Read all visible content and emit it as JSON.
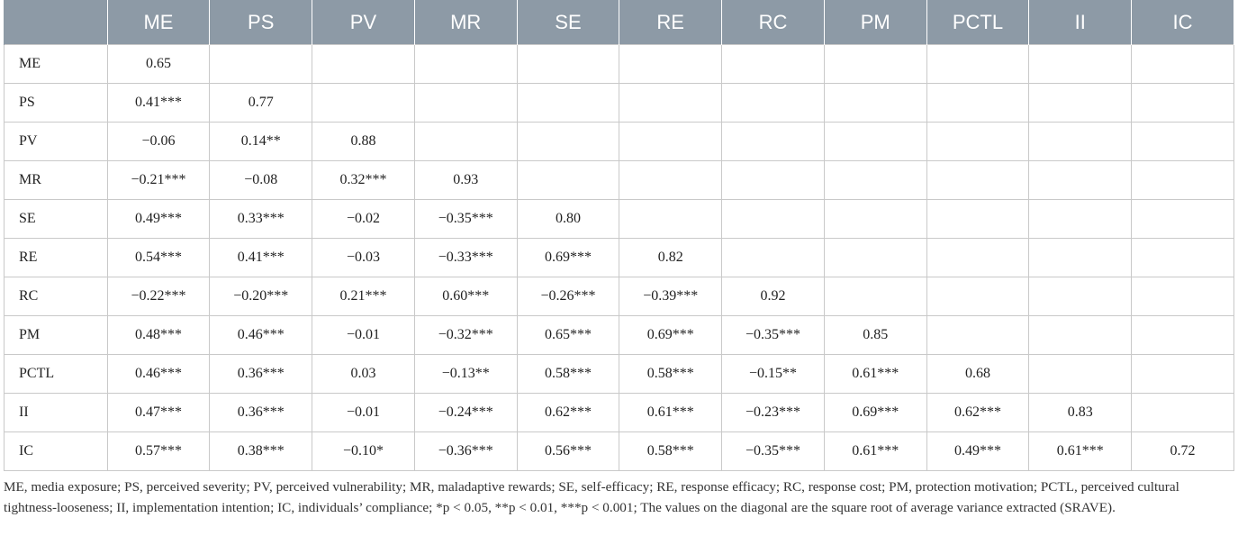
{
  "table": {
    "headers": [
      "",
      "ME",
      "PS",
      "PV",
      "MR",
      "SE",
      "RE",
      "RC",
      "PM",
      "PCTL",
      "II",
      "IC"
    ],
    "rows": [
      {
        "label": "ME",
        "cells": [
          "0.65",
          "",
          "",
          "",
          "",
          "",
          "",
          "",
          "",
          "",
          ""
        ]
      },
      {
        "label": "PS",
        "cells": [
          "0.41***",
          "0.77",
          "",
          "",
          "",
          "",
          "",
          "",
          "",
          "",
          ""
        ]
      },
      {
        "label": "PV",
        "cells": [
          "−0.06",
          "0.14**",
          "0.88",
          "",
          "",
          "",
          "",
          "",
          "",
          "",
          ""
        ]
      },
      {
        "label": "MR",
        "cells": [
          "−0.21***",
          "−0.08",
          "0.32***",
          "0.93",
          "",
          "",
          "",
          "",
          "",
          "",
          ""
        ]
      },
      {
        "label": "SE",
        "cells": [
          "0.49***",
          "0.33***",
          "−0.02",
          "−0.35***",
          "0.80",
          "",
          "",
          "",
          "",
          "",
          ""
        ]
      },
      {
        "label": "RE",
        "cells": [
          "0.54***",
          "0.41***",
          "−0.03",
          "−0.33***",
          "0.69***",
          "0.82",
          "",
          "",
          "",
          "",
          ""
        ]
      },
      {
        "label": "RC",
        "cells": [
          "−0.22***",
          "−0.20***",
          "0.21***",
          "0.60***",
          "−0.26***",
          "−0.39***",
          "0.92",
          "",
          "",
          "",
          ""
        ]
      },
      {
        "label": "PM",
        "cells": [
          "0.48***",
          "0.46***",
          "−0.01",
          "−0.32***",
          "0.65***",
          "0.69***",
          "−0.35***",
          "0.85",
          "",
          "",
          ""
        ]
      },
      {
        "label": "PCTL",
        "cells": [
          "0.46***",
          "0.36***",
          "0.03",
          "−0.13**",
          "0.58***",
          "0.58***",
          "−0.15**",
          "0.61***",
          "0.68",
          "",
          ""
        ]
      },
      {
        "label": "II",
        "cells": [
          "0.47***",
          "0.36***",
          "−0.01",
          "−0.24***",
          "0.62***",
          "0.61***",
          "−0.23***",
          "0.69***",
          "0.62***",
          "0.83",
          ""
        ]
      },
      {
        "label": "IC",
        "cells": [
          "0.57***",
          "0.38***",
          "−0.10*",
          "−0.36***",
          "0.56***",
          "0.58***",
          "−0.35***",
          "0.61***",
          "0.49***",
          "0.61***",
          "0.72"
        ]
      }
    ]
  },
  "footnote": "ME, media exposure; PS, perceived severity; PV, perceived vulnerability; MR, maladaptive rewards; SE, self-efficacy; RE, response efficacy; RC, response cost; PM, protection motivation; PCTL, perceived cultural tightness-looseness; II, implementation intention; IC, individuals’ compliance; *p < 0.05, **p < 0.01, ***p < 0.001; The values on the diagonal are the square root of average variance extracted (SRAVE).",
  "colors": {
    "header_bg": "#8d9aa6",
    "header_text": "#ffffff",
    "grid_line": "#c9c9c9"
  }
}
